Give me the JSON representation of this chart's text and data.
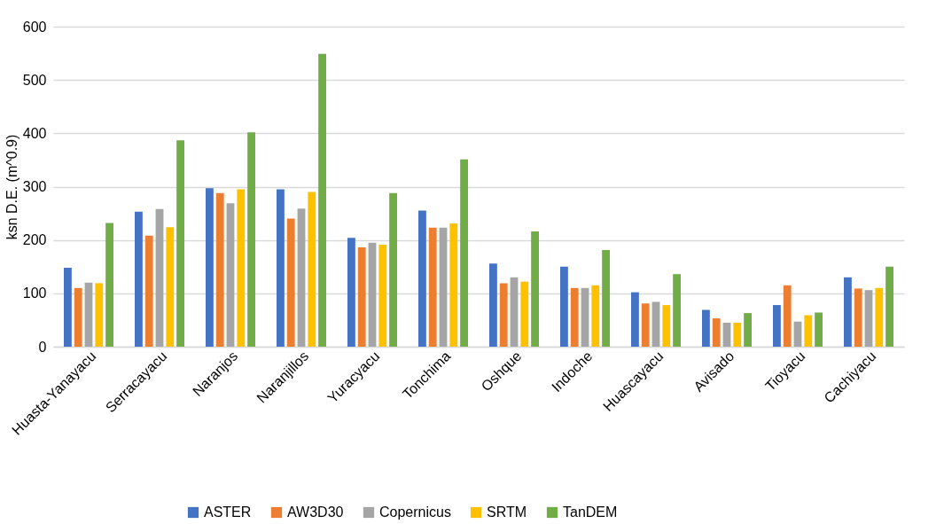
{
  "chart_data": {
    "type": "bar",
    "ylabel": "ksn D.E. (m^0.9)",
    "categories": [
      "Huasta-Yanayacu",
      "Serracayacu",
      "Naranjos",
      "Naranjillos",
      "Yuracyacu",
      "Tonchima",
      "Oshque",
      "Indoche",
      "Huascayacu",
      "Avisado",
      "Tioyacu",
      "Cachiyacu"
    ],
    "series": [
      {
        "name": "ASTER",
        "color": "#4472c4",
        "values": [
          148,
          253,
          297,
          295,
          204,
          255,
          156,
          150,
          102,
          69,
          78,
          130
        ]
      },
      {
        "name": "AW3D30",
        "color": "#ed7d31",
        "values": [
          110,
          208,
          288,
          240,
          186,
          223,
          119,
          110,
          81,
          53,
          115,
          109
        ]
      },
      {
        "name": "Copernicus",
        "color": "#a5a5a5",
        "values": [
          120,
          258,
          269,
          259,
          195,
          223,
          130,
          110,
          84,
          45,
          47,
          106
        ]
      },
      {
        "name": "SRTM",
        "color": "#ffc000",
        "values": [
          119,
          224,
          295,
          290,
          191,
          231,
          122,
          115,
          78,
          45,
          59,
          110
        ]
      },
      {
        "name": "TanDEM",
        "color": "#70ad47",
        "values": [
          232,
          387,
          402,
          549,
          288,
          351,
          216,
          181,
          136,
          63,
          64,
          150
        ]
      }
    ],
    "ylim": [
      0,
      600
    ],
    "yticks": [
      0,
      100,
      200,
      300,
      400,
      500,
      600
    ],
    "grid": "y",
    "legend": "bottom"
  }
}
